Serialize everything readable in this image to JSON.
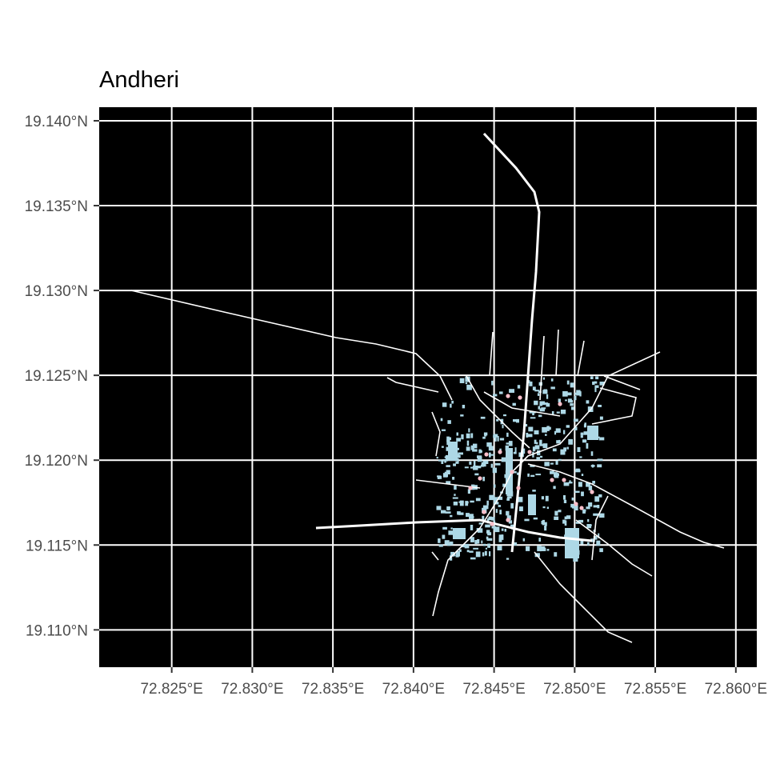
{
  "title": "Andheri",
  "map": {
    "colors": {
      "panel": "#000000",
      "grid": "#ffffff",
      "roads": "#ffffff",
      "buildings": "#add8e6",
      "points": "#ffc0cb"
    },
    "x_range": [
      72.8205,
      72.8613
    ],
    "y_range": [
      19.1078,
      19.1408
    ],
    "x_ticks": [
      {
        "value": 72.825,
        "label": "72.825°E"
      },
      {
        "value": 72.83,
        "label": "72.830°E"
      },
      {
        "value": 72.835,
        "label": "72.835°E"
      },
      {
        "value": 72.84,
        "label": "72.840°E"
      },
      {
        "value": 72.845,
        "label": "72.845°E"
      },
      {
        "value": 72.85,
        "label": "72.850°E"
      },
      {
        "value": 72.855,
        "label": "72.855°E"
      },
      {
        "value": 72.86,
        "label": "72.860°E"
      }
    ],
    "y_ticks": [
      {
        "value": 19.11,
        "label": "19.110°N"
      },
      {
        "value": 19.115,
        "label": "19.115°N"
      },
      {
        "value": 19.12,
        "label": "19.120°N"
      },
      {
        "value": 19.125,
        "label": "19.125°N"
      },
      {
        "value": 19.13,
        "label": "19.130°N"
      },
      {
        "value": 19.135,
        "label": "19.135°N"
      },
      {
        "value": 19.14,
        "label": "19.140°N"
      }
    ]
  }
}
